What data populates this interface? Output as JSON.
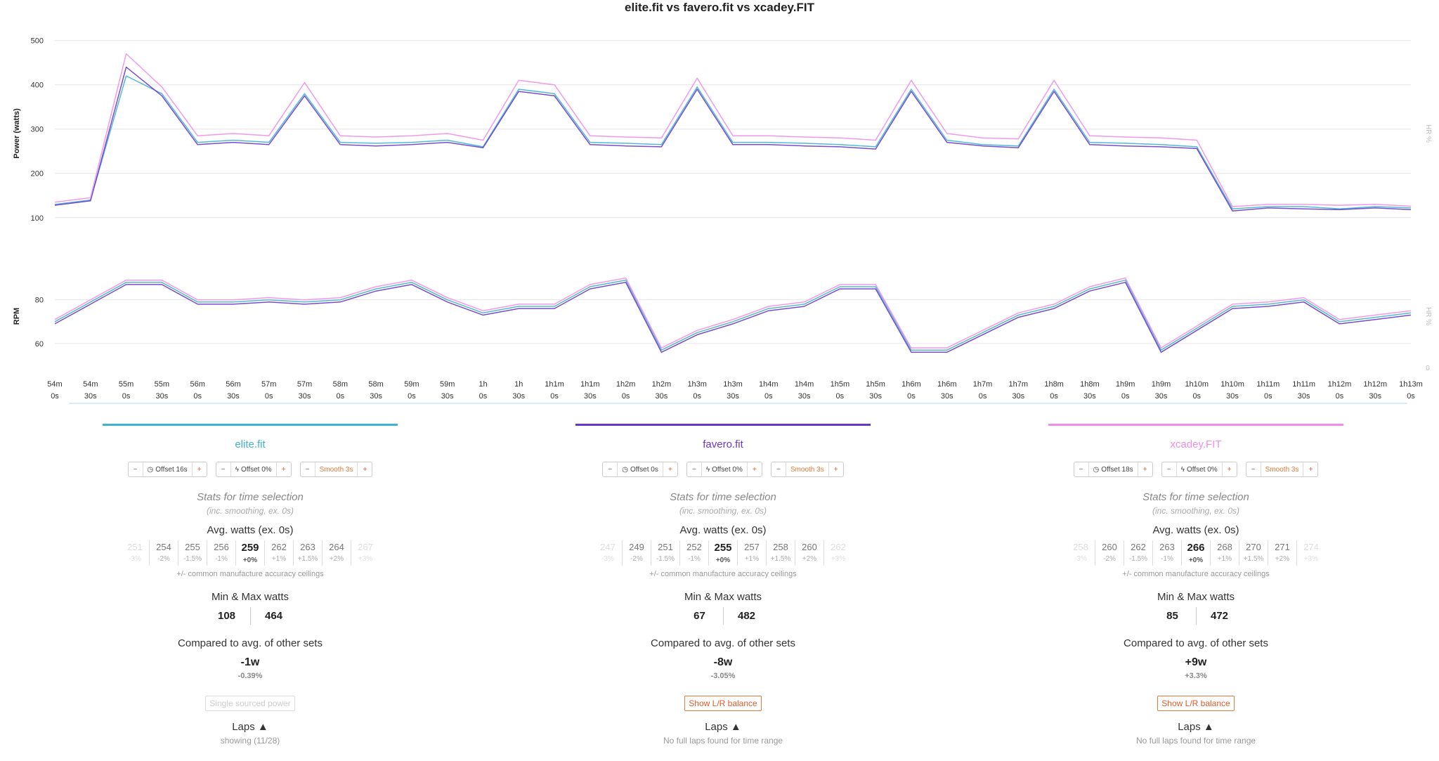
{
  "title": "elite.fit vs favero.fit vs xcadey.FIT",
  "chart_data": [
    {
      "type": "line",
      "title": "",
      "ylabel": "Power (watts)",
      "right_label": "HR %",
      "ylim": [
        60,
        520
      ],
      "yticks": [
        "500",
        "400",
        "300",
        "200",
        "100"
      ],
      "ytick_values": [
        500,
        400,
        300,
        200,
        100
      ],
      "x": [
        0,
        30,
        60,
        90,
        120,
        150,
        180,
        210,
        240,
        270,
        300,
        330,
        360,
        390,
        420,
        450,
        480,
        510,
        540,
        570,
        600,
        630,
        660,
        690,
        720,
        750,
        780,
        810,
        840,
        870,
        900,
        930,
        960,
        990,
        1020,
        1050,
        1080,
        1110,
        1140
      ],
      "series": [
        {
          "color": "#3fb3d3",
          "values": [
            130,
            140,
            420,
            380,
            270,
            275,
            270,
            380,
            270,
            268,
            270,
            275,
            260,
            390,
            380,
            270,
            268,
            265,
            395,
            270,
            270,
            268,
            265,
            260,
            390,
            275,
            265,
            262,
            390,
            270,
            268,
            265,
            260,
            120,
            125,
            125,
            120,
            125,
            122
          ]
        },
        {
          "color": "#6a38c8",
          "values": [
            128,
            138,
            440,
            375,
            265,
            270,
            265,
            375,
            265,
            262,
            265,
            270,
            258,
            385,
            375,
            265,
            262,
            260,
            390,
            265,
            265,
            262,
            260,
            255,
            385,
            270,
            262,
            258,
            385,
            265,
            262,
            260,
            256,
            115,
            122,
            120,
            118,
            122,
            118
          ]
        },
        {
          "color": "#f08ee8",
          "values": [
            135,
            145,
            470,
            395,
            285,
            290,
            285,
            405,
            285,
            282,
            285,
            290,
            275,
            410,
            400,
            285,
            282,
            280,
            415,
            285,
            285,
            282,
            280,
            275,
            410,
            290,
            280,
            278,
            410,
            285,
            282,
            280,
            275,
            125,
            130,
            130,
            128,
            130,
            126
          ]
        }
      ]
    },
    {
      "type": "line",
      "title": "",
      "ylabel": "RPM",
      "right_label": "HR %",
      "ylim": [
        50,
        95
      ],
      "yticks": [
        "80",
        "60"
      ],
      "ytick_values": [
        80,
        60
      ],
      "x": [
        0,
        30,
        60,
        90,
        120,
        150,
        180,
        210,
        240,
        270,
        300,
        330,
        360,
        390,
        420,
        450,
        480,
        510,
        540,
        570,
        600,
        630,
        660,
        690,
        720,
        750,
        780,
        810,
        840,
        870,
        900,
        930,
        960,
        990,
        1020,
        1050,
        1080,
        1110,
        1140
      ],
      "series": [
        {
          "color": "#3fb3d3",
          "values": [
            70,
            79,
            88,
            88,
            79,
            79,
            80,
            79,
            80,
            85,
            88,
            80,
            74,
            77,
            77,
            86,
            89,
            57,
            65,
            70,
            76,
            78,
            86,
            86,
            57,
            57,
            65,
            73,
            77,
            85,
            89,
            57,
            67,
            77,
            78,
            80,
            70,
            72,
            74
          ]
        },
        {
          "color": "#6a38c8",
          "values": [
            69,
            78,
            87,
            87,
            78,
            78,
            79,
            78,
            79,
            84,
            87,
            79,
            73,
            76,
            76,
            85,
            88,
            56,
            64,
            69,
            75,
            77,
            85,
            85,
            56,
            56,
            64,
            72,
            76,
            84,
            88,
            56,
            66,
            76,
            77,
            79,
            69,
            71,
            73
          ]
        },
        {
          "color": "#f08ee8",
          "values": [
            71,
            80,
            89,
            89,
            80,
            80,
            81,
            80,
            81,
            86,
            89,
            81,
            75,
            78,
            78,
            87,
            90,
            58,
            66,
            71,
            77,
            79,
            87,
            87,
            58,
            58,
            66,
            74,
            78,
            86,
            90,
            58,
            68,
            78,
            79,
            81,
            71,
            73,
            75
          ]
        }
      ]
    }
  ],
  "x_ticks": [
    {
      "a": "54m",
      "b": "0s"
    },
    {
      "a": "54m",
      "b": "30s"
    },
    {
      "a": "55m",
      "b": "0s"
    },
    {
      "a": "55m",
      "b": "30s"
    },
    {
      "a": "56m",
      "b": "0s"
    },
    {
      "a": "56m",
      "b": "30s"
    },
    {
      "a": "57m",
      "b": "0s"
    },
    {
      "a": "57m",
      "b": "30s"
    },
    {
      "a": "58m",
      "b": "0s"
    },
    {
      "a": "58m",
      "b": "30s"
    },
    {
      "a": "59m",
      "b": "0s"
    },
    {
      "a": "59m",
      "b": "30s"
    },
    {
      "a": "1h",
      "b": "0s"
    },
    {
      "a": "1h",
      "b": "30s"
    },
    {
      "a": "1h1m",
      "b": "0s"
    },
    {
      "a": "1h1m",
      "b": "30s"
    },
    {
      "a": "1h2m",
      "b": "0s"
    },
    {
      "a": "1h2m",
      "b": "30s"
    },
    {
      "a": "1h3m",
      "b": "0s"
    },
    {
      "a": "1h3m",
      "b": "30s"
    },
    {
      "a": "1h4m",
      "b": "0s"
    },
    {
      "a": "1h4m",
      "b": "30s"
    },
    {
      "a": "1h5m",
      "b": "0s"
    },
    {
      "a": "1h5m",
      "b": "30s"
    },
    {
      "a": "1h6m",
      "b": "0s"
    },
    {
      "a": "1h6m",
      "b": "30s"
    },
    {
      "a": "1h7m",
      "b": "0s"
    },
    {
      "a": "1h7m",
      "b": "30s"
    },
    {
      "a": "1h8m",
      "b": "0s"
    },
    {
      "a": "1h8m",
      "b": "30s"
    },
    {
      "a": "1h9m",
      "b": "0s"
    },
    {
      "a": "1h9m",
      "b": "30s"
    },
    {
      "a": "1h10m",
      "b": "0s"
    },
    {
      "a": "1h10m",
      "b": "30s"
    },
    {
      "a": "1h11m",
      "b": "0s"
    },
    {
      "a": "1h11m",
      "b": "30s"
    },
    {
      "a": "1h12m",
      "b": "0s"
    },
    {
      "a": "1h12m",
      "b": "30s"
    },
    {
      "a": "1h13m",
      "b": "0s"
    }
  ],
  "right_axis_ticks": [
    "0"
  ],
  "panels": [
    {
      "name": "elite.fit",
      "color": "#3fb3d3",
      "offset_time": "Offset 16s",
      "offset_pct": "Offset 0%",
      "smooth": "Smooth 3s",
      "stats_heading": "Stats for time selection",
      "stats_sub": "(inc. smoothing, ex. 0s)",
      "avg_heading": "Avg. watts (ex. 0s)",
      "avg": [
        {
          "v": "251",
          "p": "-3%"
        },
        {
          "v": "254",
          "p": "-2%"
        },
        {
          "v": "255",
          "p": "-1.5%"
        },
        {
          "v": "256",
          "p": "-1%"
        },
        {
          "v": "259",
          "p": "+0%"
        },
        {
          "v": "262",
          "p": "+1%"
        },
        {
          "v": "263",
          "p": "+1.5%"
        },
        {
          "v": "264",
          "p": "+2%"
        },
        {
          "v": "267",
          "p": "+3%"
        }
      ],
      "accuracy": "+/- common manufacture accuracy ceilings",
      "mm_heading": "Min & Max watts",
      "min": "108",
      "max": "464",
      "cmp_heading": "Compared to avg. of other sets",
      "cmp_value": "-1w",
      "cmp_pct": "-0.39%",
      "action": "Single sourced power",
      "action_enabled": false,
      "laps_heading": "Laps ▲",
      "laps_sub": "showing (11/28)"
    },
    {
      "name": "favero.fit",
      "color": "#6a38c8",
      "offset_time": "Offset 0s",
      "offset_pct": "Offset 0%",
      "smooth": "Smooth 3s",
      "stats_heading": "Stats for time selection",
      "stats_sub": "(inc. smoothing, ex. 0s)",
      "avg_heading": "Avg. watts (ex. 0s)",
      "avg": [
        {
          "v": "247",
          "p": "-3%"
        },
        {
          "v": "249",
          "p": "-2%"
        },
        {
          "v": "251",
          "p": "-1.5%"
        },
        {
          "v": "252",
          "p": "-1%"
        },
        {
          "v": "255",
          "p": "+0%"
        },
        {
          "v": "257",
          "p": "+1%"
        },
        {
          "v": "258",
          "p": "+1.5%"
        },
        {
          "v": "260",
          "p": "+2%"
        },
        {
          "v": "262",
          "p": "+3%"
        }
      ],
      "accuracy": "+/- common manufacture accuracy ceilings",
      "mm_heading": "Min & Max watts",
      "min": "67",
      "max": "482",
      "cmp_heading": "Compared to avg. of other sets",
      "cmp_value": "-8w",
      "cmp_pct": "-3.05%",
      "action": "Show L/R balance",
      "action_enabled": true,
      "laps_heading": "Laps ▲",
      "laps_sub": "No full laps found for time range"
    },
    {
      "name": "xcadey.FIT",
      "color": "#f08ee8",
      "offset_time": "Offset 18s",
      "offset_pct": "Offset 0%",
      "smooth": "Smooth 3s",
      "stats_heading": "Stats for time selection",
      "stats_sub": "(inc. smoothing, ex. 0s)",
      "avg_heading": "Avg. watts (ex. 0s)",
      "avg": [
        {
          "v": "258",
          "p": "-3%"
        },
        {
          "v": "260",
          "p": "-2%"
        },
        {
          "v": "262",
          "p": "-1.5%"
        },
        {
          "v": "263",
          "p": "-1%"
        },
        {
          "v": "266",
          "p": "+0%"
        },
        {
          "v": "268",
          "p": "+1%"
        },
        {
          "v": "270",
          "p": "+1.5%"
        },
        {
          "v": "271",
          "p": "+2%"
        },
        {
          "v": "274",
          "p": "+3%"
        }
      ],
      "accuracy": "+/- common manufacture accuracy ceilings",
      "mm_heading": "Min & Max watts",
      "min": "85",
      "max": "472",
      "cmp_heading": "Compared to avg. of other sets",
      "cmp_value": "+9w",
      "cmp_pct": "+3.3%",
      "action": "Show L/R balance",
      "action_enabled": true,
      "laps_heading": "Laps ▲",
      "laps_sub": "No full laps found for time range"
    }
  ],
  "control_icons": {
    "minus": "−",
    "plus": "+",
    "clock": "◷",
    "bolt": "ϟ"
  }
}
